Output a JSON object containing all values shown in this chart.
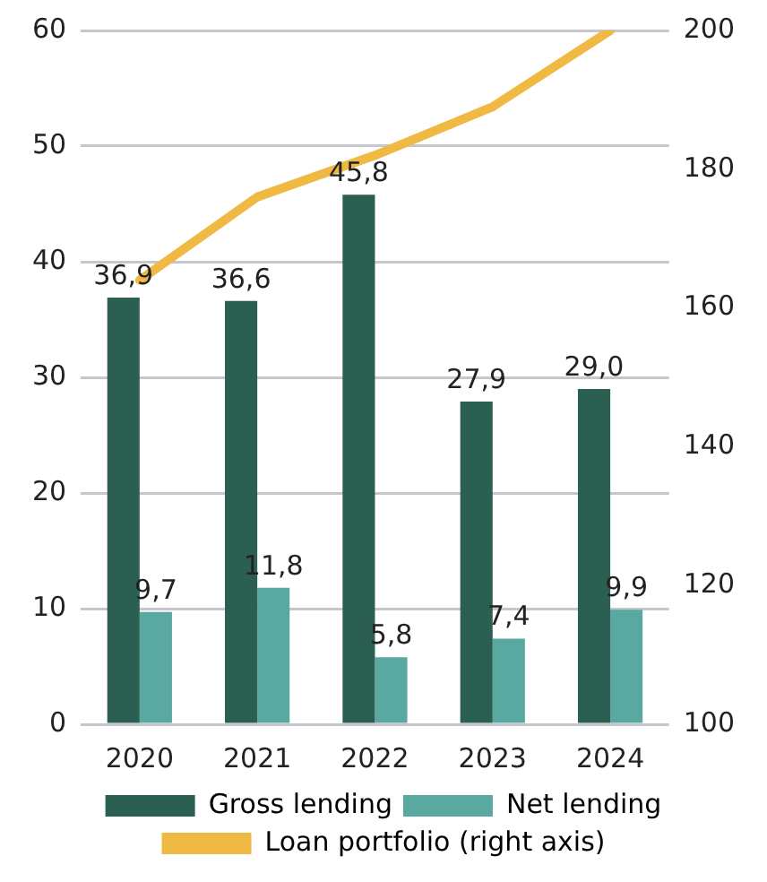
{
  "chart_data": {
    "type": "bar",
    "categories": [
      "2020",
      "2021",
      "2022",
      "2023",
      "2024"
    ],
    "series": [
      {
        "name": "Gross lending",
        "color": "#2b5f52",
        "values": [
          36.9,
          36.6,
          45.8,
          27.9,
          29.0
        ],
        "value_labels": [
          "36,9",
          "36,6",
          "45,8",
          "27,9",
          "29,0"
        ]
      },
      {
        "name": "Net lending",
        "color": "#5aa9a0",
        "values": [
          9.7,
          11.8,
          5.8,
          7.4,
          9.9
        ],
        "value_labels": [
          "9,7",
          "11,8",
          "5,8",
          "7,4",
          "9,9"
        ]
      },
      {
        "name": "Loan portfolio (right axis)",
        "type": "line",
        "axis": "y2",
        "color": "#f0b944",
        "values": [
          164,
          176,
          182,
          189,
          200
        ]
      }
    ],
    "ylim": [
      0,
      60
    ],
    "yticks": [
      0,
      10,
      20,
      30,
      40,
      50,
      60
    ],
    "y2lim": [
      100,
      200
    ],
    "y2ticks": [
      100,
      120,
      140,
      160,
      180,
      200
    ],
    "grid": "y",
    "legend": "bottom",
    "marker": "none"
  }
}
